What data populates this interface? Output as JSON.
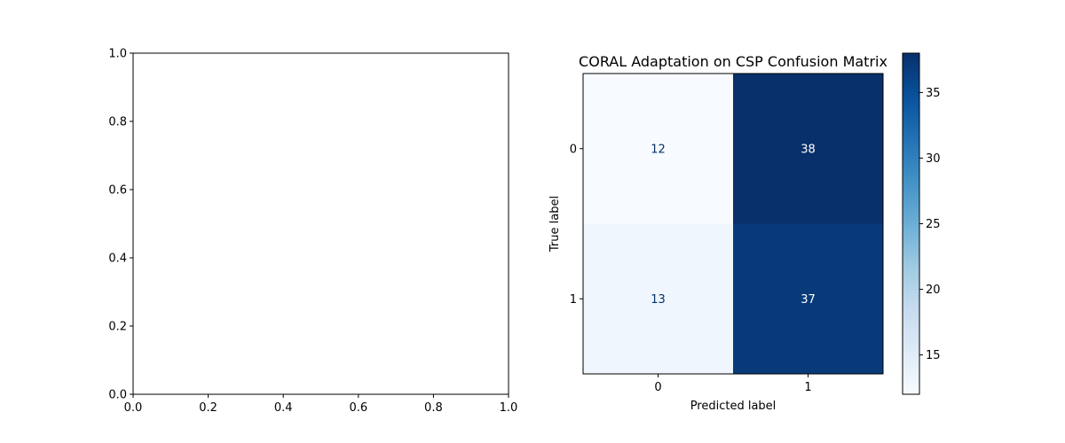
{
  "chart_data": [
    {
      "type": "line",
      "title": "",
      "xlabel": "",
      "ylabel": "",
      "xlim": [
        0.0,
        1.0
      ],
      "ylim": [
        0.0,
        1.0
      ],
      "x_ticks": [
        "0.0",
        "0.2",
        "0.4",
        "0.6",
        "0.8",
        "1.0"
      ],
      "y_ticks": [
        "0.0",
        "0.2",
        "0.4",
        "0.6",
        "0.8",
        "1.0"
      ],
      "series": [],
      "grid": false
    },
    {
      "type": "heatmap",
      "title": "CORAL Adaptation on CSP Confusion Matrix",
      "xlabel": "Predicted label",
      "ylabel": "True label",
      "x_categories": [
        "0",
        "1"
      ],
      "y_categories": [
        "0",
        "1"
      ],
      "values": [
        [
          12,
          38
        ],
        [
          13,
          37
        ]
      ],
      "colormap": "Blues",
      "color_range": [
        12,
        38
      ],
      "colorbar_ticks": [
        "15",
        "20",
        "25",
        "30",
        "35"
      ],
      "colorbar_tick_values": [
        15,
        20,
        25,
        30,
        35
      ],
      "grid": false
    }
  ]
}
